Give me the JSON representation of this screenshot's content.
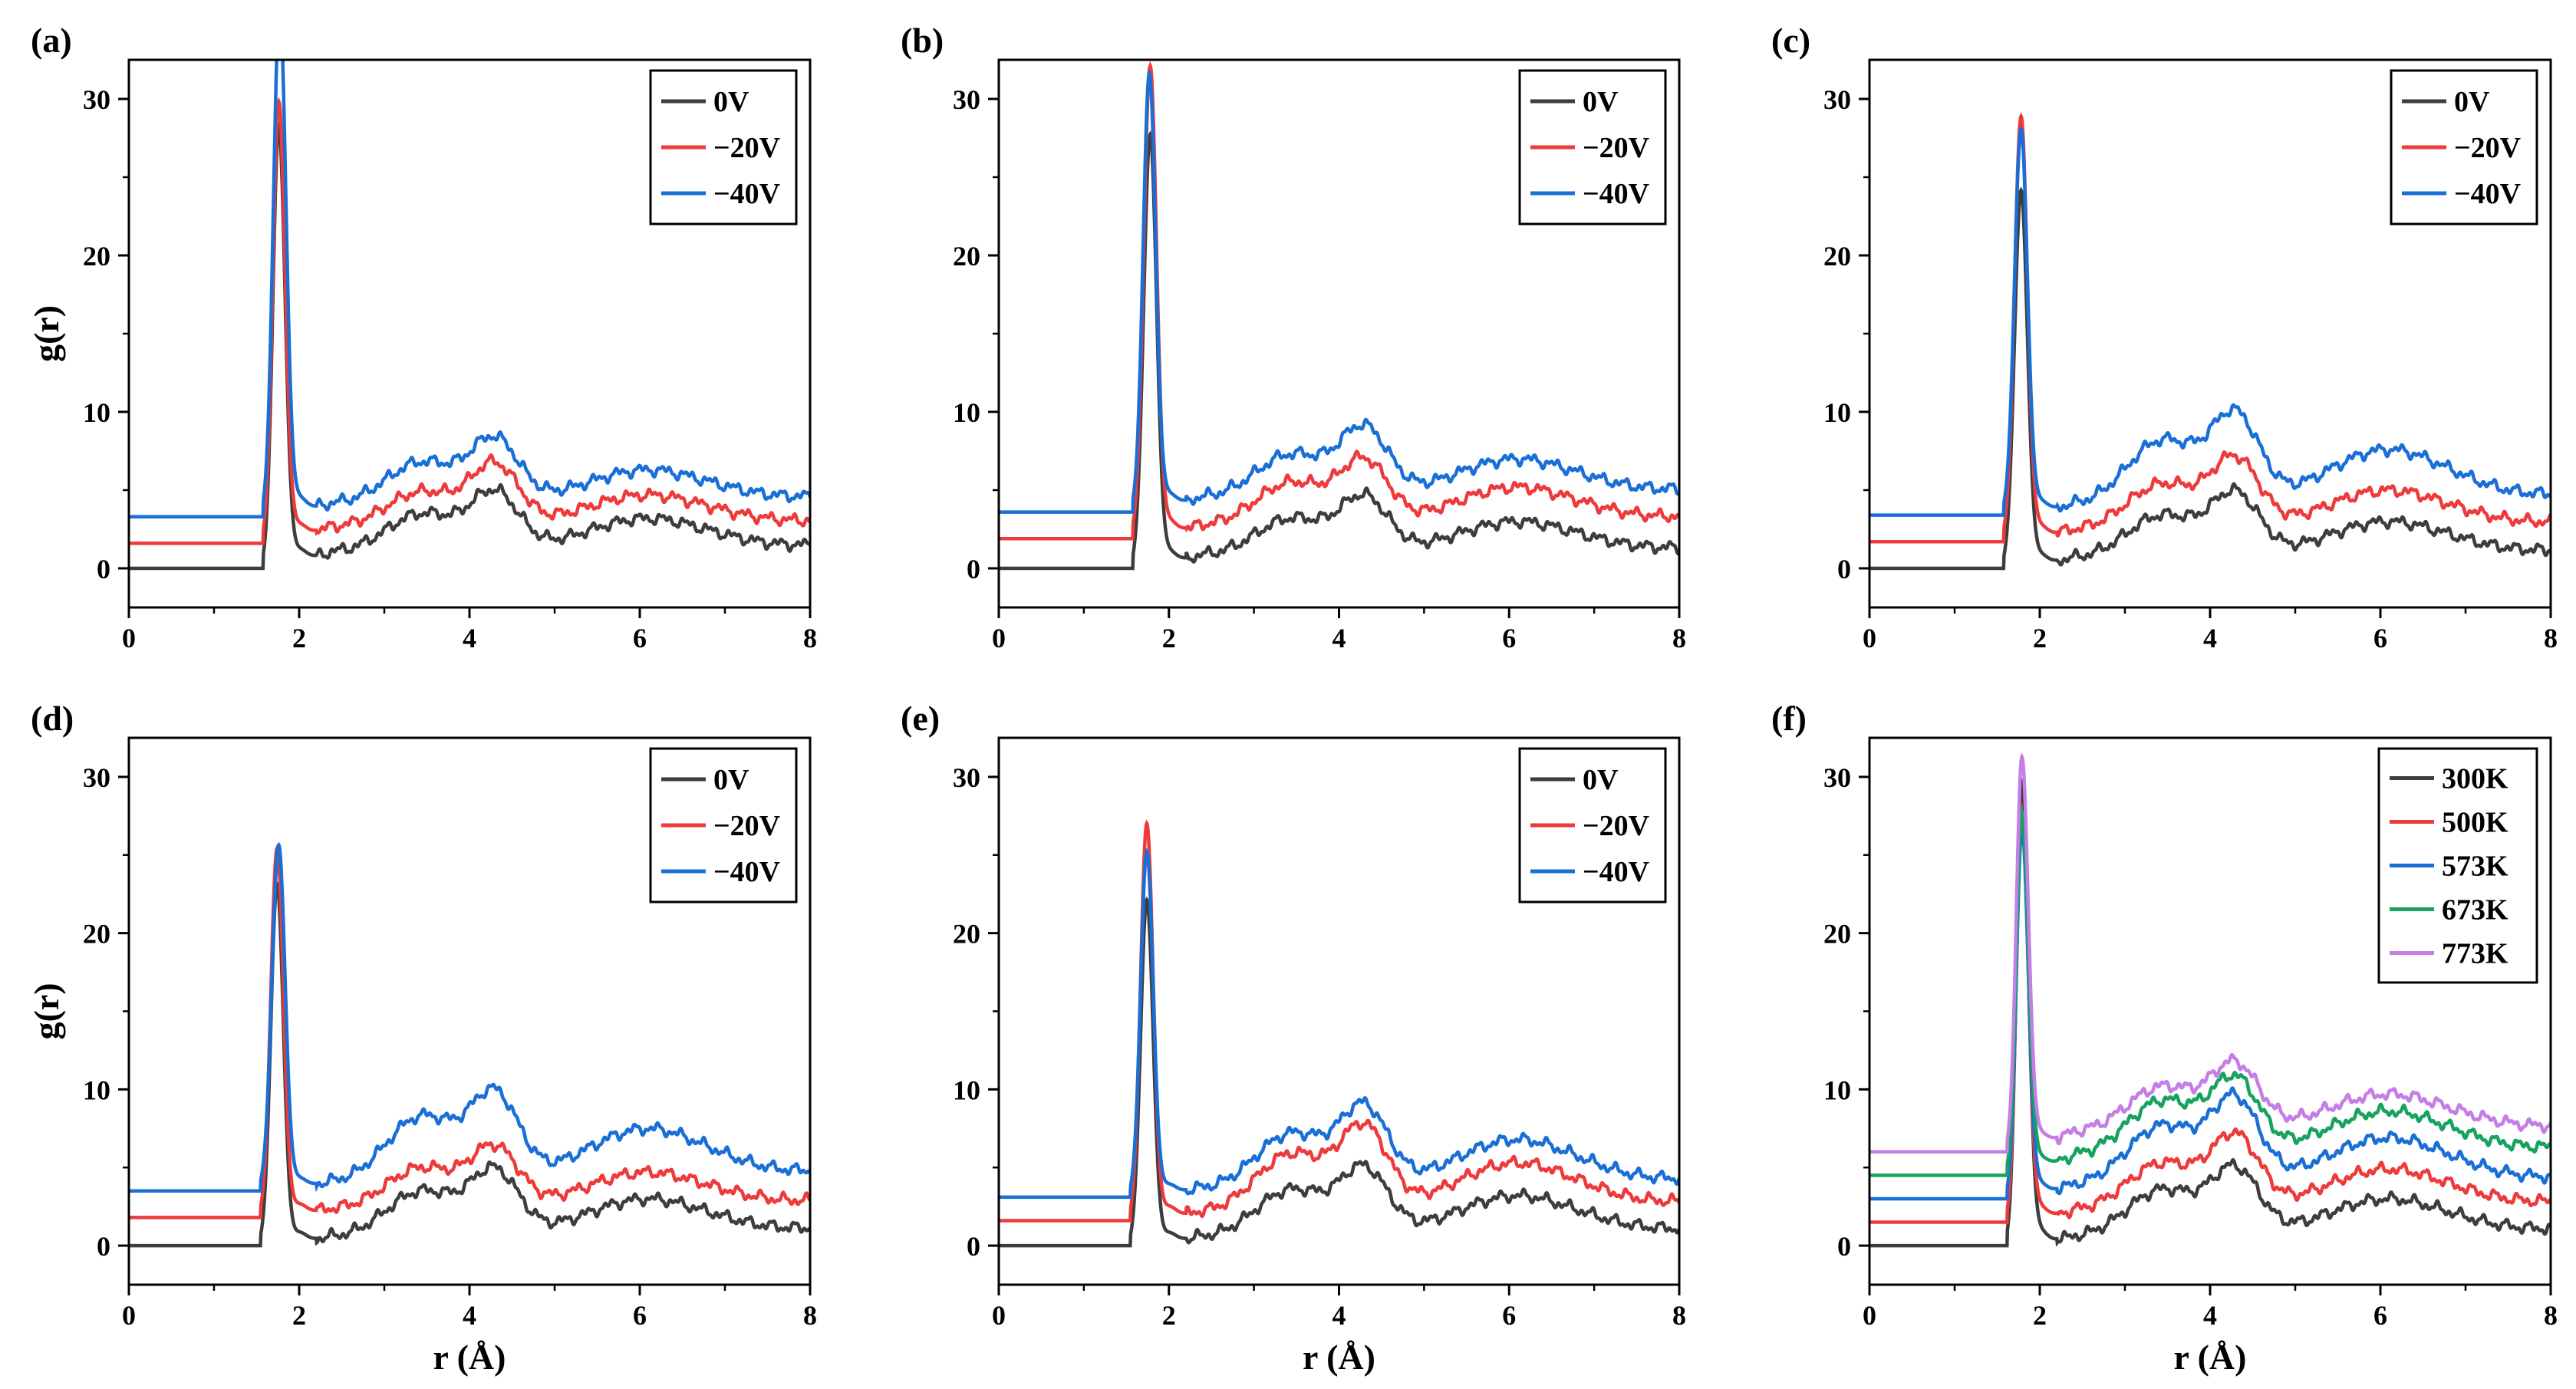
{
  "figure": {
    "xlabel": "r (Å)",
    "ylabel": "g(r)",
    "colors": {
      "0V": "#3d3d3d",
      "-20V": "#ee3a3a",
      "-40V": "#1a6fd6",
      "300K": "#3d3d3d",
      "500K": "#ee3a3a",
      "573K": "#1a6fd6",
      "673K": "#16a35e",
      "773K": "#c47ee6"
    }
  },
  "chart_data": [
    {
      "panel": "(a)",
      "type": "line",
      "xlabel": "",
      "ylabel": "g(r)",
      "xlim": [
        0,
        8
      ],
      "ylim": [
        -2.5,
        32.5
      ],
      "xticks": [
        0,
        2,
        4,
        6,
        8
      ],
      "yticks": [
        0,
        10,
        20,
        30
      ],
      "legend": "top-right",
      "series": [
        {
          "name": "0V",
          "offset": 0.0,
          "onset": 1.58,
          "peak_r": 1.76,
          "peak": 28.0,
          "base": 1.0,
          "p2": 3.5,
          "p3": 4.6,
          "p4": 3.2,
          "end": 2.4
        },
        {
          "name": "−20V",
          "offset": 1.6,
          "onset": 1.58,
          "peak_r": 1.76,
          "peak": 28.0,
          "base": 1.0,
          "p2": 3.3,
          "p3": 4.8,
          "p4": 3.1,
          "end": 2.3
        },
        {
          "name": "−40V",
          "offset": 3.3,
          "onset": 1.58,
          "peak_r": 1.77,
          "peak": 32.5,
          "base": 0.8,
          "p2": 3.5,
          "p3": 4.7,
          "p4": 3.0,
          "end": 2.2
        }
      ]
    },
    {
      "panel": "(b)",
      "type": "line",
      "xlabel": "",
      "ylabel": "",
      "xlim": [
        0,
        8
      ],
      "ylim": [
        -2.5,
        32.5
      ],
      "xticks": [
        0,
        2,
        4,
        6,
        8
      ],
      "yticks": [
        0,
        10,
        20,
        30
      ],
      "legend": "top-right",
      "series": [
        {
          "name": "0V",
          "offset": 0.0,
          "onset": 1.58,
          "peak_r": 1.78,
          "peak": 27.5,
          "base": 0.8,
          "p2": 3.2,
          "p3": 4.3,
          "p4": 3.0,
          "end": 2.3
        },
        {
          "name": "−20V",
          "offset": 1.9,
          "onset": 1.58,
          "peak_r": 1.78,
          "peak": 30.0,
          "base": 0.8,
          "p2": 3.6,
          "p3": 4.7,
          "p4": 3.3,
          "end": 2.6
        },
        {
          "name": "−40V",
          "offset": 3.6,
          "onset": 1.58,
          "peak_r": 1.77,
          "peak": 27.8,
          "base": 0.9,
          "p2": 3.7,
          "p3": 5.1,
          "p4": 3.4,
          "end": 2.5
        }
      ]
    },
    {
      "panel": "(c)",
      "type": "line",
      "xlabel": "",
      "ylabel": "",
      "xlim": [
        0,
        8
      ],
      "ylim": [
        -2.5,
        32.5
      ],
      "xticks": [
        0,
        2,
        4,
        6,
        8
      ],
      "yticks": [
        0,
        10,
        20,
        30
      ],
      "legend": "top-right",
      "series": [
        {
          "name": "0V",
          "offset": 0.0,
          "onset": 1.58,
          "peak_r": 1.78,
          "peak": 24.0,
          "base": 0.6,
          "p2": 3.4,
          "p3": 4.5,
          "p4": 3.0,
          "end": 2.2
        },
        {
          "name": "−20V",
          "offset": 1.7,
          "onset": 1.58,
          "peak_r": 1.78,
          "peak": 27.0,
          "base": 0.7,
          "p2": 3.7,
          "p3": 5.0,
          "p4": 3.3,
          "end": 2.3
        },
        {
          "name": "−40V",
          "offset": 3.4,
          "onset": 1.58,
          "peak_r": 1.78,
          "peak": 24.5,
          "base": 0.6,
          "p2": 4.8,
          "p3": 6.0,
          "p4": 4.2,
          "end": 2.7
        }
      ]
    },
    {
      "panel": "(d)",
      "type": "line",
      "xlabel": "r (Å)",
      "ylabel": "g(r)",
      "xlim": [
        0,
        8
      ],
      "ylim": [
        -2.5,
        32.5
      ],
      "xticks": [
        0,
        2,
        4,
        6,
        8
      ],
      "yticks": [
        0,
        10,
        20,
        30
      ],
      "legend": "top-right",
      "series": [
        {
          "name": "0V",
          "offset": 0.0,
          "onset": 1.55,
          "peak_r": 1.74,
          "peak": 23.0,
          "base": 0.5,
          "p2": 3.5,
          "p3": 4.5,
          "p4": 3.0,
          "end": 2.3
        },
        {
          "name": "−20V",
          "offset": 1.8,
          "onset": 1.55,
          "peak_r": 1.74,
          "peak": 23.5,
          "base": 0.5,
          "p2": 3.2,
          "p3": 4.2,
          "p4": 2.9,
          "end": 2.2
        },
        {
          "name": "−40V",
          "offset": 3.5,
          "onset": 1.55,
          "peak_r": 1.76,
          "peak": 22.0,
          "base": 0.5,
          "p2": 4.8,
          "p3": 5.8,
          "p4": 4.0,
          "end": 2.8
        }
      ]
    },
    {
      "panel": "(e)",
      "type": "line",
      "xlabel": "r (Å)",
      "ylabel": "",
      "xlim": [
        0,
        8
      ],
      "ylim": [
        -2.5,
        32.5
      ],
      "xticks": [
        0,
        2,
        4,
        6,
        8
      ],
      "yticks": [
        0,
        10,
        20,
        30
      ],
      "legend": "top-right",
      "series": [
        {
          "name": "0V",
          "offset": 0.0,
          "onset": 1.55,
          "peak_r": 1.74,
          "peak": 22.0,
          "base": 0.5,
          "p2": 3.6,
          "p3": 4.6,
          "p4": 3.2,
          "end": 2.2
        },
        {
          "name": "−20V",
          "offset": 1.6,
          "onset": 1.55,
          "peak_r": 1.74,
          "peak": 25.3,
          "base": 0.5,
          "p2": 4.3,
          "p3": 5.6,
          "p4": 3.7,
          "end": 2.6
        },
        {
          "name": "−40V",
          "offset": 3.1,
          "onset": 1.55,
          "peak_r": 1.74,
          "peak": 22.0,
          "base": 0.5,
          "p2": 4.1,
          "p3": 5.4,
          "p4": 3.7,
          "end": 2.5
        }
      ]
    },
    {
      "panel": "(f)",
      "type": "line",
      "xlabel": "r (Å)",
      "ylabel": "",
      "xlim": [
        0,
        8
      ],
      "ylim": [
        -2.5,
        32.5
      ],
      "xticks": [
        0,
        2,
        4,
        6,
        8
      ],
      "yticks": [
        0,
        10,
        20,
        30
      ],
      "legend": "top-right",
      "series": [
        {
          "name": "300K",
          "offset": 0.0,
          "onset": 1.62,
          "peak_r": 1.79,
          "peak": 29.5,
          "base": 0.5,
          "p2": 3.6,
          "p3": 4.6,
          "p4": 3.0,
          "end": 2.2
        },
        {
          "name": "500K",
          "offset": 1.5,
          "onset": 1.62,
          "peak_r": 1.79,
          "peak": 26.0,
          "base": 0.7,
          "p2": 3.8,
          "p3": 5.2,
          "p4": 3.4,
          "end": 2.5
        },
        {
          "name": "573K",
          "offset": 3.0,
          "onset": 1.62,
          "peak_r": 1.79,
          "peak": 23.5,
          "base": 0.8,
          "p2": 4.7,
          "p3": 6.0,
          "p4": 3.9,
          "end": 2.5
        },
        {
          "name": "673K",
          "offset": 4.5,
          "onset": 1.62,
          "peak_r": 1.79,
          "peak": 23.0,
          "base": 1.2,
          "p2": 4.8,
          "p3": 5.8,
          "p4": 4.1,
          "end": 2.9
        },
        {
          "name": "773K",
          "offset": 6.0,
          "onset": 1.62,
          "peak_r": 1.79,
          "peak": 25.0,
          "base": 1.2,
          "p2": 4.2,
          "p3": 5.3,
          "p4": 3.7,
          "end": 2.5
        }
      ]
    }
  ]
}
